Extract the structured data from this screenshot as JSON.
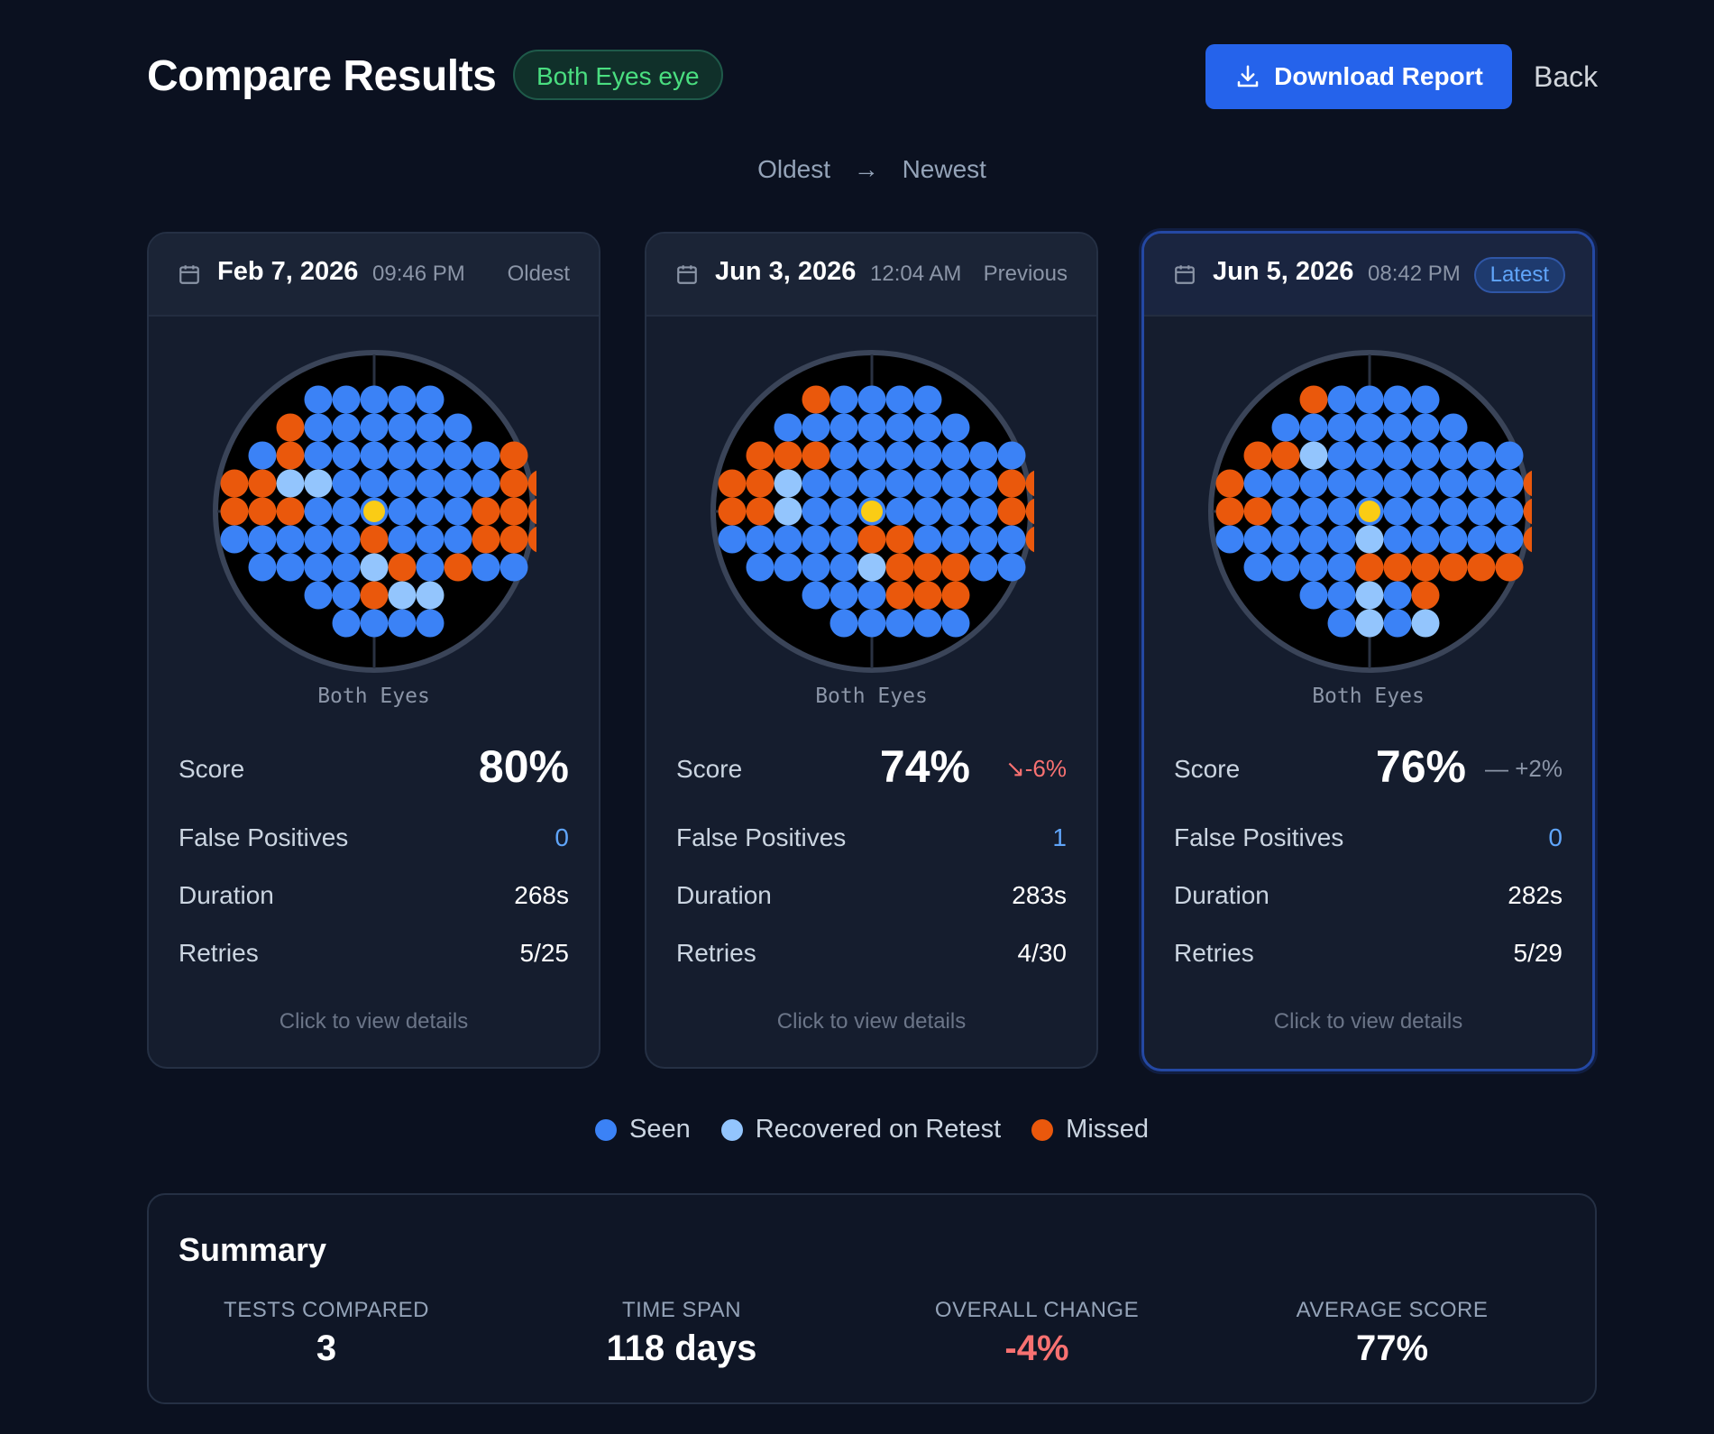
{
  "header": {
    "title": "Compare Results",
    "eye_badge": "Both Eyes eye",
    "download_label": "Download Report",
    "back_label": "Back"
  },
  "order": {
    "from": "Oldest",
    "to": "Newest"
  },
  "colors": {
    "seen": "#3b82f6",
    "recovered": "#93c5fd",
    "missed": "#ea580c",
    "fixation": "#facc15",
    "accent": "#2563eb",
    "negative": "#f87171"
  },
  "cards": [
    {
      "date": "Feb 7, 2026",
      "time": "09:46 PM",
      "tag": "Oldest",
      "field_label": "Both Eyes",
      "score_label": "Score",
      "score": "80%",
      "delta": "",
      "fp_label": "False Positives",
      "false_positives": "0",
      "duration_label": "Duration",
      "duration": "268s",
      "retries_label": "Retries",
      "retries": "5/25",
      "footer": "Click to view details",
      "field": [
        "....SSSSS....",
        "...MSSSSSS...",
        "..SMSSSSSSSM.",
        ".MMRRSSSSSSMM",
        ".MMMSSSSSSMMM",
        ".SSSSSMSSSMMM",
        "..SSSSRMSMSS.",
        "....SSMRR....",
        ".....SSSS...."
      ]
    },
    {
      "date": "Jun 3, 2026",
      "time": "12:04 AM",
      "tag": "Previous",
      "field_label": "Both Eyes",
      "score_label": "Score",
      "score": "74%",
      "delta": "-6%",
      "fp_label": "False Positives",
      "false_positives": "1",
      "duration_label": "Duration",
      "duration": "283s",
      "retries_label": "Retries",
      "retries": "4/30",
      "footer": "Click to view details",
      "field": [
        "....MSSSS....",
        "...SSSSSSS...",
        "..MMMSSSSSSS.",
        ".MMRSSSSSSSMM",
        ".MMRSSSSSSSMM",
        ".SSSSSMMSSSSM",
        "..SSSSRMMMSS.",
        "....SSSMMM...",
        ".....SSSSS..."
      ]
    },
    {
      "date": "Jun 5, 2026",
      "time": "08:42 PM",
      "tag": "Latest",
      "field_label": "Both Eyes",
      "score_label": "Score",
      "score": "76%",
      "delta": "+2%",
      "fp_label": "False Positives",
      "false_positives": "0",
      "duration_label": "Duration",
      "duration": "282s",
      "retries_label": "Retries",
      "retries": "5/29",
      "footer": "Click to view details",
      "field": [
        "....MSSSS....",
        "...SSSSSSS...",
        "..MMRSSSSSSS.",
        ".MSSSSSSSSSSM",
        ".MMSSSSSSSSSM",
        ".SSSSSRSSSSSM",
        "..SSSSMMMMMM.",
        "....SSRSM....",
        ".....SRSR...."
      ]
    }
  ],
  "legend": [
    {
      "label": "Seen",
      "color": "#3b82f6"
    },
    {
      "label": "Recovered on Retest",
      "color": "#93c5fd"
    },
    {
      "label": "Missed",
      "color": "#ea580c"
    }
  ],
  "summary": {
    "title": "Summary",
    "tests_compared_label": "TESTS COMPARED",
    "tests_compared": "3",
    "time_span_label": "TIME SPAN",
    "time_span": "118 days",
    "overall_change_label": "OVERALL CHANGE",
    "overall_change": "-4%",
    "average_score_label": "AVERAGE SCORE",
    "average_score": "77%"
  }
}
